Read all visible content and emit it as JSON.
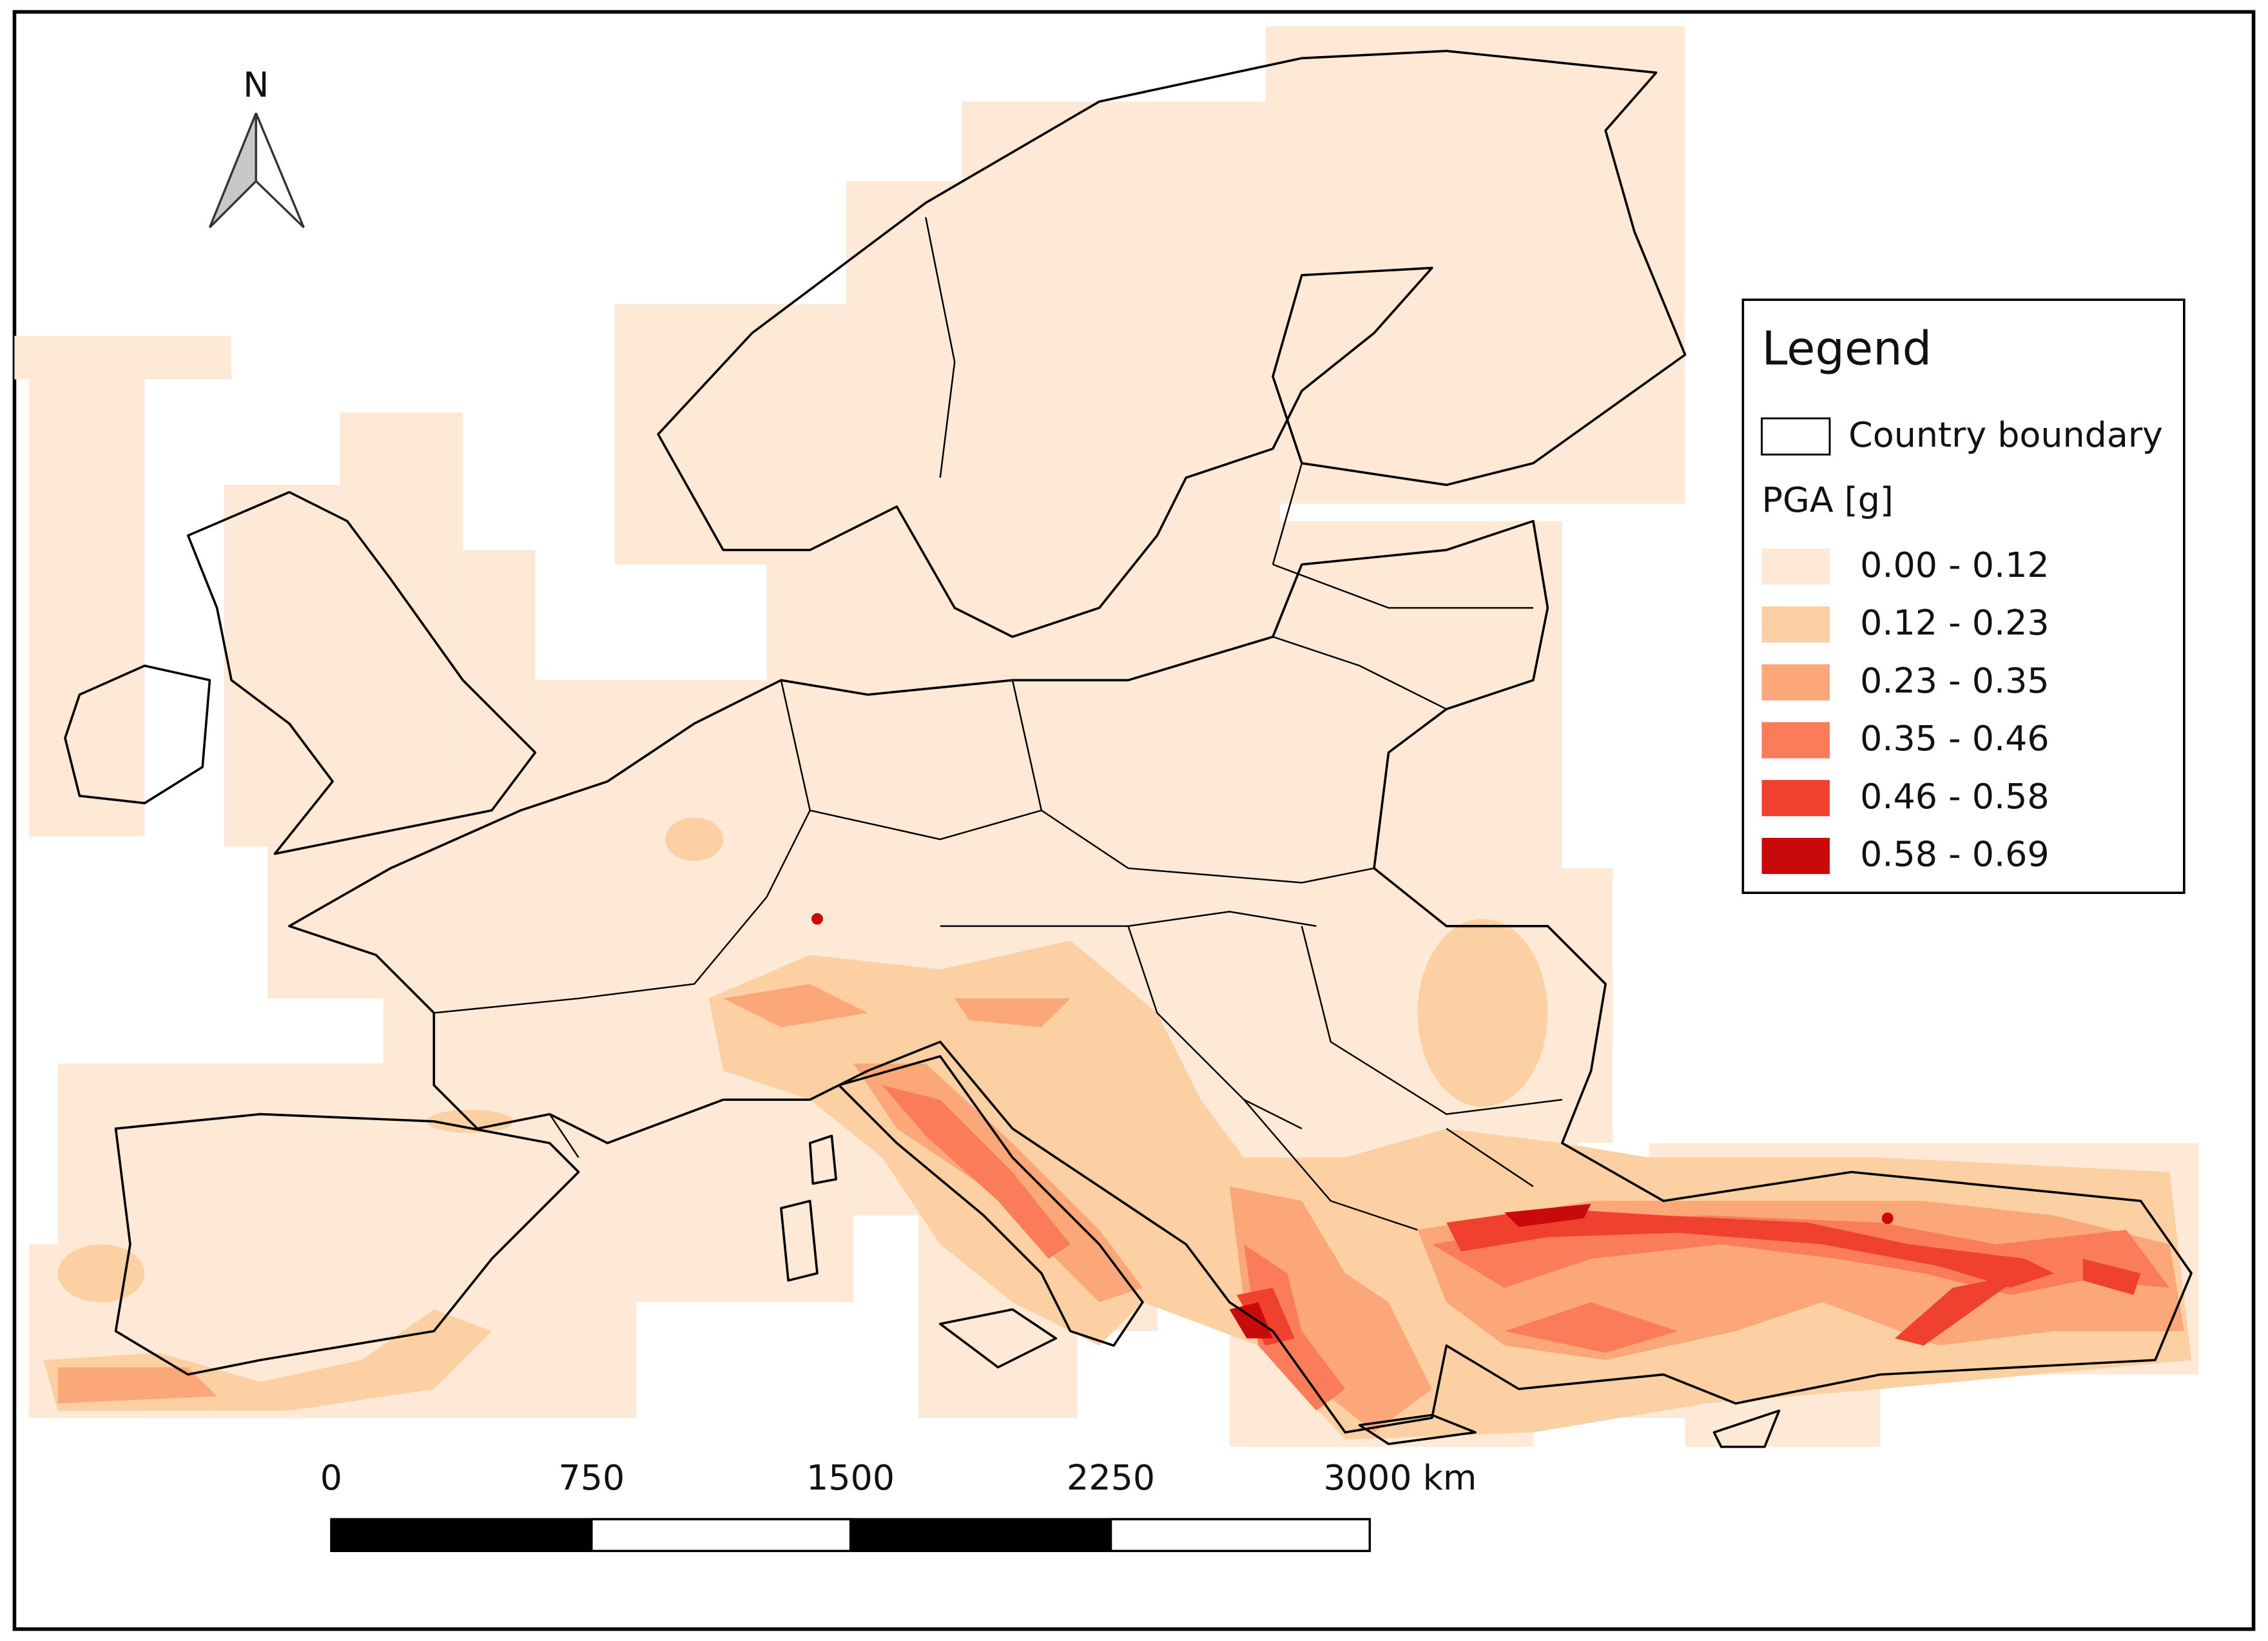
{
  "north_arrow": {
    "label": "N"
  },
  "legend": {
    "title": "Legend",
    "boundary_label": "Country boundary",
    "group_title": "PGA [g]",
    "classes": [
      {
        "label": "0.00 - 0.12",
        "color": "#fde9d6"
      },
      {
        "label": "0.12 - 0.23",
        "color": "#fcd0a2"
      },
      {
        "label": "0.23 - 0.35",
        "color": "#fca77a"
      },
      {
        "label": "0.35 - 0.46",
        "color": "#fb7c58"
      },
      {
        "label": "0.46 - 0.58",
        "color": "#f0412e"
      },
      {
        "label": "0.58 - 0.69",
        "color": "#c80a0a"
      }
    ]
  },
  "scale_bar": {
    "labels": [
      "0",
      "750",
      "1500",
      "2250",
      "3000 km"
    ]
  }
}
